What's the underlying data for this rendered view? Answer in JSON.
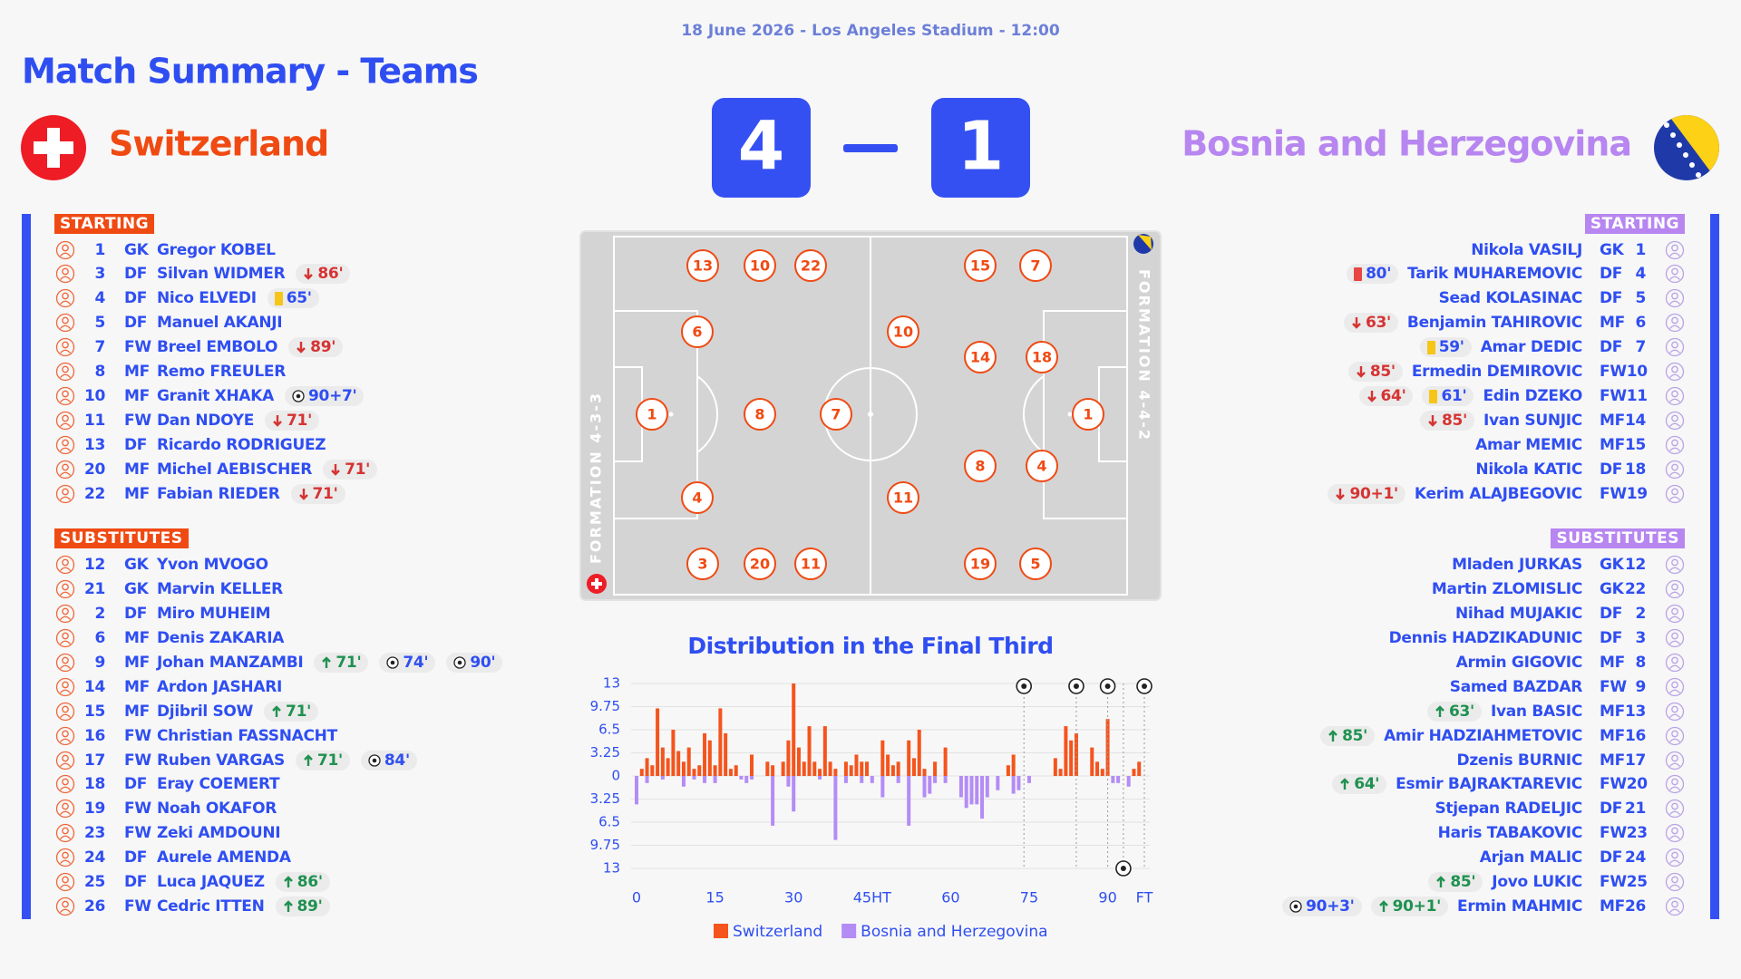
{
  "header": {
    "date": "18 June 2026 - Los Angeles Stadium - 12:00",
    "title": "Match Summary - Teams"
  },
  "home": {
    "name": "Switzerland",
    "score": 4,
    "starting_label": "STARTING",
    "substitutes_label": "SUBSTITUTES",
    "starting": [
      {
        "number": 1,
        "position": "GK",
        "name": "Gregor KOBEL"
      },
      {
        "number": 3,
        "position": "DF",
        "name": "Silvan WIDMER",
        "events": [
          {
            "type": "sub_off",
            "label": "86'"
          }
        ]
      },
      {
        "number": 4,
        "position": "DF",
        "name": "Nico ELVEDI",
        "events": [
          {
            "type": "yellow",
            "label": "65'"
          }
        ]
      },
      {
        "number": 5,
        "position": "DF",
        "name": "Manuel AKANJI"
      },
      {
        "number": 7,
        "position": "FW",
        "name": "Breel EMBOLO",
        "events": [
          {
            "type": "sub_off",
            "label": "89'"
          }
        ]
      },
      {
        "number": 8,
        "position": "MF",
        "name": "Remo FREULER"
      },
      {
        "number": 10,
        "position": "MF",
        "name": "Granit XHAKA",
        "events": [
          {
            "type": "goal",
            "label": "90+7'"
          }
        ]
      },
      {
        "number": 11,
        "position": "FW",
        "name": "Dan NDOYE",
        "events": [
          {
            "type": "sub_off",
            "label": "71'"
          }
        ]
      },
      {
        "number": 13,
        "position": "DF",
        "name": "Ricardo RODRIGUEZ"
      },
      {
        "number": 20,
        "position": "MF",
        "name": "Michel AEBISCHER",
        "events": [
          {
            "type": "sub_off",
            "label": "71'"
          }
        ]
      },
      {
        "number": 22,
        "position": "MF",
        "name": "Fabian RIEDER",
        "events": [
          {
            "type": "sub_off",
            "label": "71'"
          }
        ]
      }
    ],
    "substitutes": [
      {
        "number": 12,
        "position": "GK",
        "name": "Yvon MVOGO"
      },
      {
        "number": 21,
        "position": "GK",
        "name": "Marvin KELLER"
      },
      {
        "number": 2,
        "position": "DF",
        "name": "Miro MUHEIM"
      },
      {
        "number": 6,
        "position": "MF",
        "name": "Denis ZAKARIA"
      },
      {
        "number": 9,
        "position": "MF",
        "name": "Johan MANZAMBI",
        "events": [
          {
            "type": "sub_on",
            "label": "71'"
          },
          {
            "type": "goal",
            "label": "74'"
          },
          {
            "type": "goal",
            "label": "90'"
          }
        ]
      },
      {
        "number": 14,
        "position": "MF",
        "name": "Ardon JASHARI"
      },
      {
        "number": 15,
        "position": "MF",
        "name": "Djibril SOW",
        "events": [
          {
            "type": "sub_on",
            "label": "71'"
          }
        ]
      },
      {
        "number": 16,
        "position": "FW",
        "name": "Christian FASSNACHT"
      },
      {
        "number": 17,
        "position": "FW",
        "name": "Ruben VARGAS",
        "events": [
          {
            "type": "sub_on",
            "label": "71'"
          },
          {
            "type": "goal",
            "label": "84'"
          }
        ]
      },
      {
        "number": 18,
        "position": "DF",
        "name": "Eray COEMERT"
      },
      {
        "number": 19,
        "position": "FW",
        "name": "Noah OKAFOR"
      },
      {
        "number": 23,
        "position": "FW",
        "name": "Zeki AMDOUNI"
      },
      {
        "number": 24,
        "position": "DF",
        "name": "Aurele AMENDA"
      },
      {
        "number": 25,
        "position": "DF",
        "name": "Luca JAQUEZ",
        "events": [
          {
            "type": "sub_on",
            "label": "86'"
          }
        ]
      },
      {
        "number": 26,
        "position": "FW",
        "name": "Cedric ITTEN",
        "events": [
          {
            "type": "sub_on",
            "label": "89'"
          }
        ]
      }
    ]
  },
  "away": {
    "name": "Bosnia and Herzegovina",
    "score": 1,
    "starting_label": "STARTING",
    "substitutes_label": "SUBSTITUTES",
    "starting": [
      {
        "number": 1,
        "position": "GK",
        "name": "Nikola VASILJ"
      },
      {
        "number": 4,
        "position": "DF",
        "name": "Tarik MUHAREMOVIC",
        "events": [
          {
            "type": "red",
            "label": "80'"
          }
        ]
      },
      {
        "number": 5,
        "position": "DF",
        "name": "Sead KOLASINAC"
      },
      {
        "number": 6,
        "position": "MF",
        "name": "Benjamin TAHIROVIC",
        "events": [
          {
            "type": "sub_off",
            "label": "63'"
          }
        ]
      },
      {
        "number": 7,
        "position": "DF",
        "name": "Amar DEDIC",
        "events": [
          {
            "type": "yellow",
            "label": "59'"
          }
        ]
      },
      {
        "number": 10,
        "position": "FW",
        "name": "Ermedin DEMIROVIC",
        "events": [
          {
            "type": "sub_off",
            "label": "85'"
          }
        ]
      },
      {
        "number": 11,
        "position": "FW",
        "name": "Edin DZEKO",
        "events": [
          {
            "type": "yellow",
            "label": "61'"
          },
          {
            "type": "sub_off",
            "label": "64'"
          }
        ]
      },
      {
        "number": 14,
        "position": "MF",
        "name": "Ivan SUNJIC",
        "events": [
          {
            "type": "sub_off",
            "label": "85'"
          }
        ]
      },
      {
        "number": 15,
        "position": "MF",
        "name": "Amar MEMIC"
      },
      {
        "number": 18,
        "position": "DF",
        "name": "Nikola KATIC"
      },
      {
        "number": 19,
        "position": "FW",
        "name": "Kerim ALAJBEGOVIC",
        "events": [
          {
            "type": "sub_off",
            "label": "90+1'"
          }
        ]
      }
    ],
    "substitutes": [
      {
        "number": 12,
        "position": "GK",
        "name": "Mladen JURKAS"
      },
      {
        "number": 22,
        "position": "GK",
        "name": "Martin ZLOMISLIC"
      },
      {
        "number": 2,
        "position": "DF",
        "name": "Nihad MUJAKIC"
      },
      {
        "number": 3,
        "position": "DF",
        "name": "Dennis HADZIKADUNIC"
      },
      {
        "number": 8,
        "position": "MF",
        "name": "Armin GIGOVIC"
      },
      {
        "number": 9,
        "position": "FW",
        "name": "Samed BAZDAR"
      },
      {
        "number": 13,
        "position": "MF",
        "name": "Ivan BASIC",
        "events": [
          {
            "type": "sub_on",
            "label": "63'"
          }
        ]
      },
      {
        "number": 16,
        "position": "MF",
        "name": "Amir HADZIAHMETOVIC",
        "events": [
          {
            "type": "sub_on",
            "label": "85'"
          }
        ]
      },
      {
        "number": 17,
        "position": "MF",
        "name": "Dzenis BURNIC"
      },
      {
        "number": 20,
        "position": "FW",
        "name": "Esmir BAJRAKTAREVIC",
        "events": [
          {
            "type": "sub_on",
            "label": "64'"
          }
        ]
      },
      {
        "number": 21,
        "position": "DF",
        "name": "Stjepan RADELJIC"
      },
      {
        "number": 23,
        "position": "FW",
        "name": "Haris TABAKOVIC"
      },
      {
        "number": 24,
        "position": "DF",
        "name": "Arjan MALIC"
      },
      {
        "number": 25,
        "position": "FW",
        "name": "Jovo LUKIC",
        "events": [
          {
            "type": "sub_on",
            "label": "85'"
          }
        ]
      },
      {
        "number": 26,
        "position": "MF",
        "name": "Ermin MAHMIC",
        "events": [
          {
            "type": "sub_on",
            "label": "90+1'"
          },
          {
            "type": "goal",
            "label": "90+3'"
          }
        ]
      }
    ]
  },
  "pitch": {
    "home": {
      "formation": "FORMATION 4-3-3",
      "players": [
        13,
        10,
        22,
        6,
        1,
        8,
        7,
        4,
        3,
        20,
        11
      ]
    },
    "away": {
      "formation": "FORMATION 4-4-2",
      "players": [
        15,
        7,
        10,
        14,
        18,
        1,
        8,
        4,
        11,
        19,
        5
      ]
    }
  },
  "chart_data": {
    "type": "bar",
    "title": "Distribution in the Final Third",
    "x": [
      0,
      1,
      2,
      3,
      4,
      5,
      6,
      7,
      8,
      9,
      10,
      11,
      12,
      13,
      14,
      15,
      16,
      17,
      18,
      19,
      20,
      21,
      22,
      23,
      24,
      25,
      26,
      27,
      28,
      29,
      30,
      31,
      32,
      33,
      34,
      35,
      36,
      37,
      38,
      39,
      40,
      41,
      42,
      43,
      44,
      45,
      46,
      47,
      48,
      49,
      50,
      51,
      52,
      53,
      54,
      55,
      56,
      57,
      58,
      59,
      60,
      61,
      62,
      63,
      64,
      65,
      66,
      67,
      68,
      69,
      70,
      71,
      72,
      73,
      74,
      75,
      76,
      77,
      78,
      79,
      80,
      81,
      82,
      83,
      84,
      85,
      86,
      87,
      88,
      89,
      90,
      91,
      92,
      93,
      94,
      95,
      96,
      97
    ],
    "series": [
      {
        "name": "Switzerland",
        "color": "#f5541d",
        "goals": [
          74,
          84,
          90,
          97
        ],
        "values": [
          0,
          1,
          2.5,
          1.5,
          9.5,
          4,
          2.5,
          6.5,
          3.5,
          2,
          4,
          1,
          1.5,
          6,
          5,
          1.5,
          9.5,
          6,
          1,
          1.5,
          0,
          0,
          3,
          0,
          0,
          2,
          1.5,
          0,
          2,
          5,
          13,
          4,
          2,
          7,
          2,
          1,
          7,
          2,
          1,
          0,
          2,
          1.5,
          3,
          2,
          2,
          0,
          0,
          5,
          3,
          1.5,
          2,
          0,
          5,
          2.5,
          6.5,
          1,
          0,
          2,
          0,
          4,
          0,
          0,
          0,
          0,
          0,
          0,
          0,
          0,
          0,
          0,
          0,
          1.5,
          3,
          0,
          0,
          0,
          0,
          0,
          0,
          0,
          2.5,
          1,
          7,
          5,
          6,
          0,
          0,
          4,
          2,
          1,
          8,
          0,
          0,
          0,
          0,
          1,
          2,
          0
        ]
      },
      {
        "name": "Bosnia and Herzegovina",
        "color": "#b48cf5",
        "goals": [
          93
        ],
        "values": [
          -4,
          0,
          -1,
          0,
          0,
          -0.5,
          0,
          0,
          0,
          -1.5,
          0,
          -0.5,
          0,
          -1,
          0,
          -1,
          0,
          0,
          0,
          0,
          -0.5,
          -1,
          -0.5,
          0,
          0,
          0,
          -7,
          0,
          0,
          -1.5,
          -5,
          0,
          0,
          0,
          0,
          -0.5,
          0,
          0,
          -9,
          0,
          -1,
          0,
          0,
          -1,
          0,
          -1,
          0,
          -3,
          0,
          0,
          -1,
          0,
          -7,
          0,
          0,
          -3,
          -2.5,
          -1,
          0,
          -1,
          0,
          0,
          -3,
          -4.5,
          -4,
          -4,
          -6,
          -3,
          0,
          -2,
          0,
          0,
          -2.5,
          -2,
          0,
          -1,
          0,
          0,
          0,
          0,
          0,
          0,
          0,
          0,
          0,
          0,
          0,
          0,
          0,
          0,
          0,
          -1,
          -1,
          0,
          -1.5,
          0,
          0,
          0
        ]
      }
    ],
    "xlim": [
      0,
      97
    ],
    "ylim": [
      -13,
      13
    ],
    "xticks": [
      0,
      15,
      30,
      {
        "value": 45,
        "label": "45HT"
      },
      60,
      75,
      90,
      {
        "value": 97,
        "label": "FT"
      }
    ],
    "yticks": [
      13,
      9.75,
      6.5,
      3.25,
      0,
      {
        "value": -3.25,
        "label": "3.25"
      },
      {
        "value": -6.5,
        "label": "6.5"
      },
      {
        "value": -9.75,
        "label": "9.75"
      },
      {
        "value": -13,
        "label": "13"
      }
    ],
    "grid": true,
    "legend": "bottom"
  }
}
